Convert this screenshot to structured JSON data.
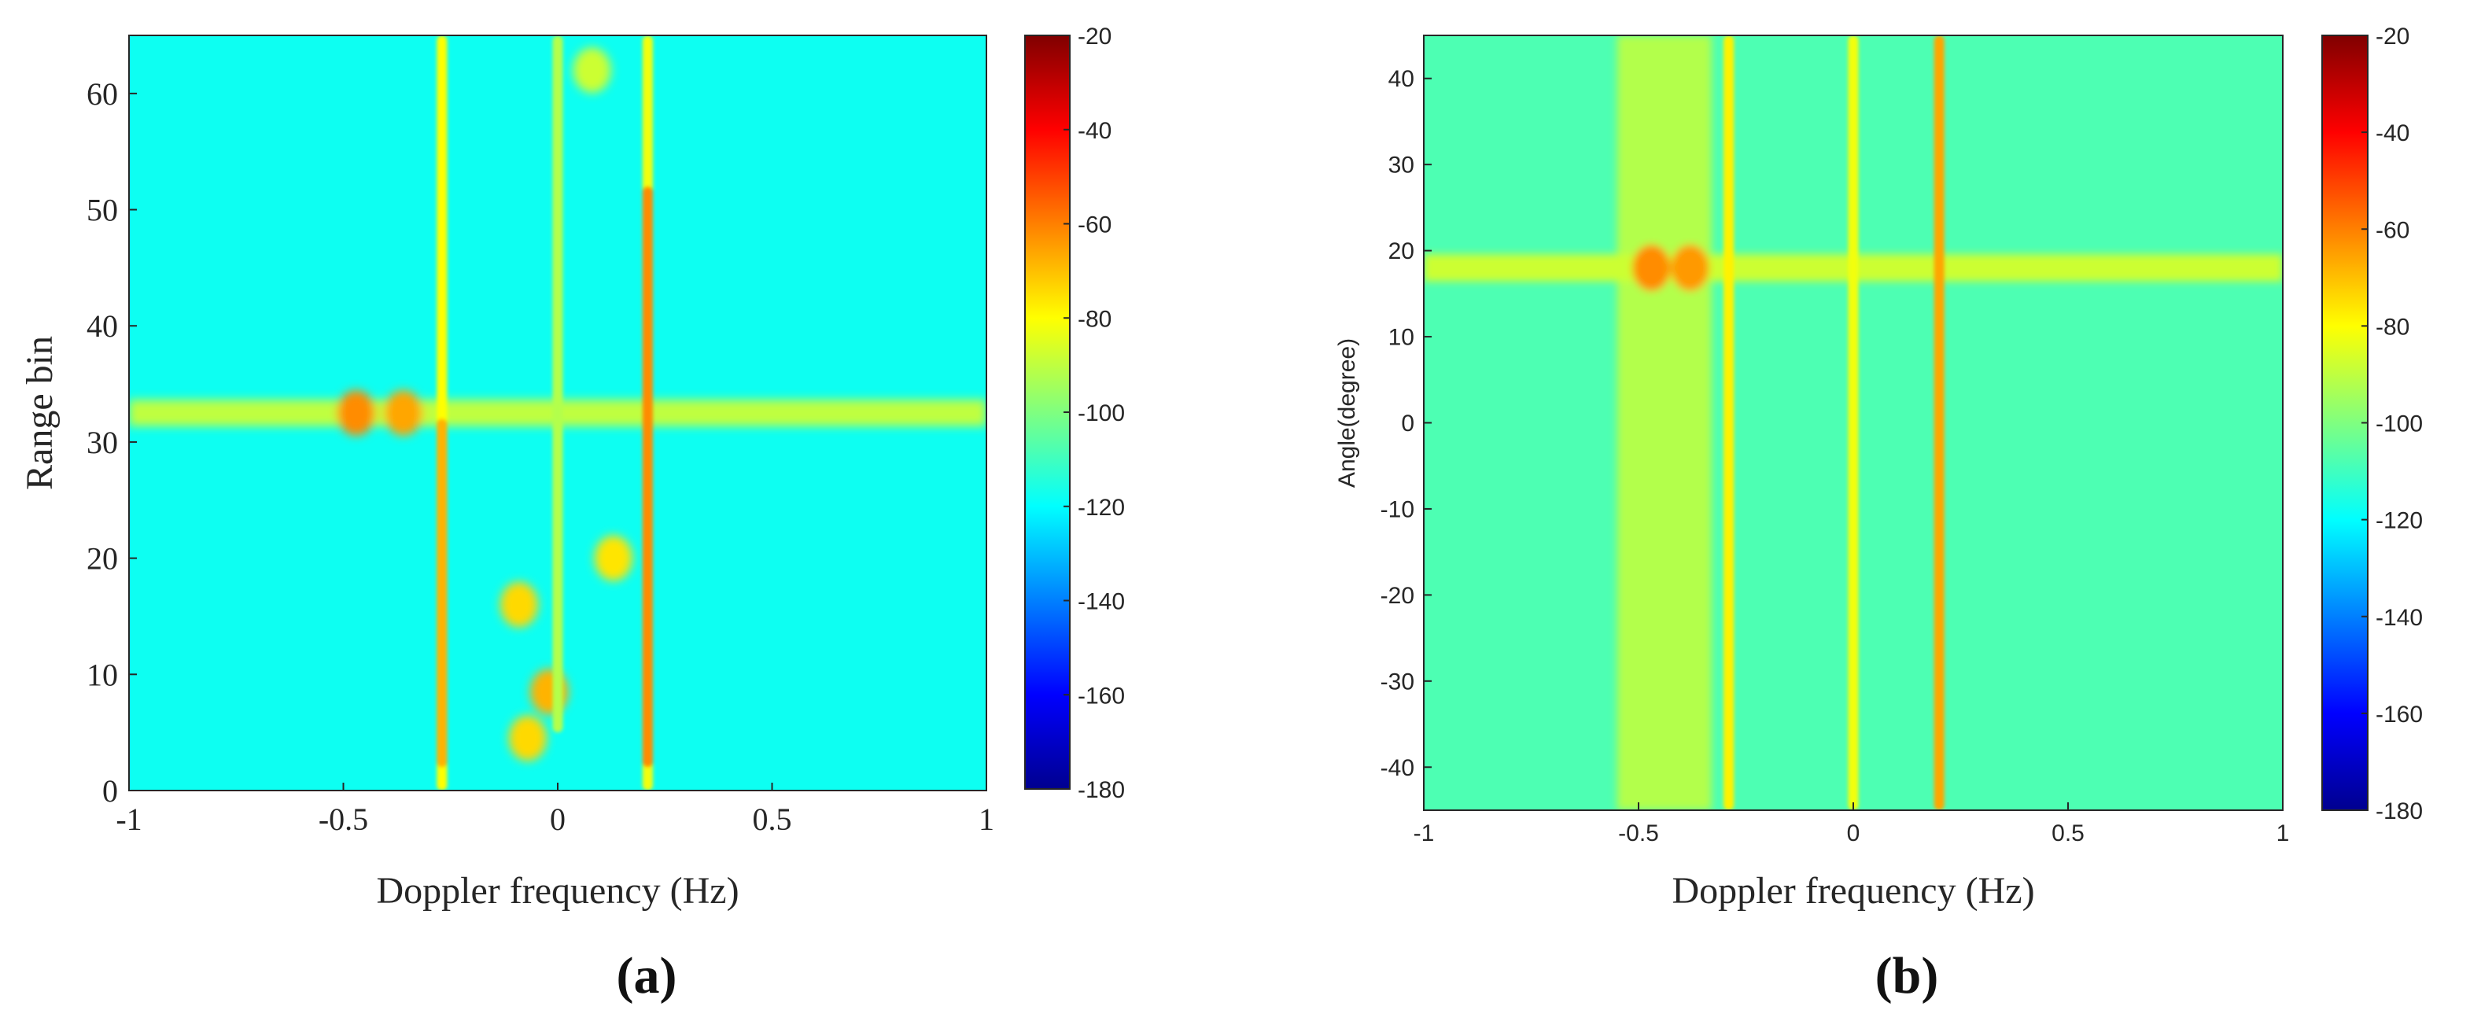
{
  "chart_data": [
    {
      "type": "heatmap",
      "panel_label": "(a)",
      "title": "",
      "xlabel": "Doppler frequency (Hz)",
      "ylabel": "Range bin",
      "xlim": [
        -1,
        1
      ],
      "ylim": [
        0,
        65
      ],
      "xticks": [
        "-1",
        "-0.5",
        "0",
        "0.5",
        "1"
      ],
      "xtick_values": [
        -1,
        -0.5,
        0,
        0.5,
        1
      ],
      "yticks": [
        "0",
        "10",
        "20",
        "30",
        "40",
        "50",
        "60"
      ],
      "ytick_values": [
        0,
        10,
        20,
        30,
        40,
        50,
        60
      ],
      "colorbar": {
        "min": -180,
        "max": -20,
        "ticks": [
          "-20",
          "-40",
          "-60",
          "-80",
          "-100",
          "-120",
          "-140",
          "-160",
          "-180"
        ],
        "tick_values": [
          -20,
          -40,
          -60,
          -80,
          -100,
          -120,
          -140,
          -160,
          -180
        ],
        "colormap": "jet"
      },
      "background_level": -118,
      "features": [
        {
          "kind": "vertical_line",
          "x": -0.27,
          "y_from": 0,
          "y_to": 65,
          "level": -80
        },
        {
          "kind": "vertical_line",
          "x": -0.27,
          "y_from": 2,
          "y_to": 32,
          "level": -68
        },
        {
          "kind": "vertical_line",
          "x": 0.21,
          "y_from": 0,
          "y_to": 65,
          "level": -82
        },
        {
          "kind": "vertical_line",
          "x": 0.21,
          "y_from": 2,
          "y_to": 52,
          "level": -62
        },
        {
          "kind": "vertical_line",
          "x": 0.0,
          "y_from": 5,
          "y_to": 65,
          "level": -92
        },
        {
          "kind": "horizontal_band",
          "y": 32.5,
          "x_from": -1,
          "x_to": 1,
          "level": -90
        },
        {
          "kind": "blob",
          "x": -0.47,
          "y": 32.5,
          "level": -62
        },
        {
          "kind": "blob",
          "x": -0.36,
          "y": 32.5,
          "level": -66
        },
        {
          "kind": "blob",
          "x": -0.02,
          "y": 8.5,
          "level": -68
        },
        {
          "kind": "blob",
          "x": -0.09,
          "y": 16,
          "level": -74
        },
        {
          "kind": "blob",
          "x": -0.07,
          "y": 4.5,
          "level": -74
        },
        {
          "kind": "blob",
          "x": 0.13,
          "y": 20,
          "level": -76
        },
        {
          "kind": "blob",
          "x": 0.08,
          "y": 62,
          "level": -88
        }
      ]
    },
    {
      "type": "heatmap",
      "panel_label": "(b)",
      "title": "",
      "xlabel": "Doppler frequency (Hz)",
      "ylabel": "Angle(degree)",
      "xlim": [
        -1,
        1
      ],
      "ylim": [
        -45,
        45
      ],
      "xticks": [
        "-1",
        "-0.5",
        "0",
        "0.5",
        "1"
      ],
      "xtick_values": [
        -1,
        -0.5,
        0,
        0.5,
        1
      ],
      "yticks": [
        "-40",
        "-30",
        "-20",
        "-10",
        "0",
        "10",
        "20",
        "30",
        "40"
      ],
      "ytick_values": [
        -40,
        -30,
        -20,
        -10,
        0,
        10,
        20,
        30,
        40
      ],
      "colorbar": {
        "min": -180,
        "max": -20,
        "ticks": [
          "-20",
          "-40",
          "-60",
          "-80",
          "-100",
          "-120",
          "-140",
          "-160",
          "-180"
        ],
        "tick_values": [
          -20,
          -40,
          -60,
          -80,
          -100,
          -120,
          -140,
          -160,
          -180
        ],
        "colormap": "jet"
      },
      "background_level": -108,
      "features": [
        {
          "kind": "vertical_band",
          "x_from": -0.55,
          "x_to": -0.33,
          "level": -92
        },
        {
          "kind": "vertical_line",
          "x": -0.29,
          "y_from": -45,
          "y_to": 45,
          "level": -78
        },
        {
          "kind": "vertical_line",
          "x": 0.0,
          "y_from": -45,
          "y_to": 45,
          "level": -82
        },
        {
          "kind": "vertical_line",
          "x": 0.2,
          "y_from": -45,
          "y_to": 45,
          "level": -66
        },
        {
          "kind": "horizontal_band",
          "y": 18,
          "x_from": -1,
          "x_to": 1,
          "level": -88
        },
        {
          "kind": "blob",
          "x": -0.47,
          "y": 18,
          "level": -62
        },
        {
          "kind": "blob",
          "x": -0.38,
          "y": 18,
          "level": -64
        }
      ]
    }
  ]
}
